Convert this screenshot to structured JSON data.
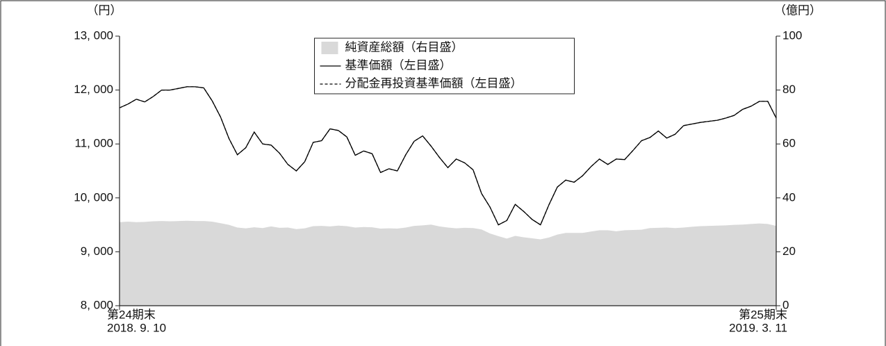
{
  "chart_data": {
    "type": "line",
    "y_unit_label": "（円）",
    "y2_unit_label": "（億円）",
    "categories": [
      "2018. 9. 10",
      null,
      null,
      null,
      null,
      null,
      null,
      null,
      null,
      null,
      null,
      null,
      null,
      null,
      null,
      null,
      null,
      null,
      null,
      null,
      null,
      null,
      null,
      null,
      null,
      null,
      null,
      null,
      null,
      null,
      null,
      null,
      null,
      null,
      null,
      null,
      null,
      null,
      null,
      null,
      null,
      null,
      null,
      null,
      null,
      null,
      null,
      null,
      null,
      null,
      null,
      null,
      null,
      null,
      null,
      null,
      null,
      null,
      null,
      null,
      null,
      null,
      null,
      null,
      null,
      null,
      null,
      null,
      null,
      null,
      null,
      null,
      null,
      null,
      null,
      null,
      null,
      null,
      "2019. 3. 11"
    ],
    "category_periods": [
      "第24期末",
      null,
      null,
      null,
      null,
      null,
      null,
      null,
      null,
      null,
      null,
      null,
      null,
      null,
      null,
      null,
      null,
      null,
      null,
      null,
      null,
      null,
      null,
      null,
      null,
      null,
      null,
      null,
      null,
      null,
      null,
      null,
      null,
      null,
      null,
      null,
      null,
      null,
      null,
      null,
      null,
      null,
      null,
      null,
      null,
      null,
      null,
      null,
      null,
      null,
      null,
      null,
      null,
      null,
      null,
      null,
      null,
      null,
      null,
      null,
      null,
      null,
      null,
      null,
      null,
      null,
      null,
      null,
      null,
      null,
      null,
      null,
      null,
      null,
      null,
      null,
      null,
      null,
      "第25期末"
    ],
    "series": [
      {
        "name": "純資産総額（右目盛）",
        "type": "area",
        "axis": "y2",
        "color": "#d9d9d9",
        "values": [
          31,
          31.2,
          31,
          31.1,
          31.3,
          31.4,
          31.3,
          31.4,
          31.5,
          31.4,
          31.4,
          31.2,
          30.6,
          30,
          29,
          28.7,
          29.1,
          28.8,
          29.4,
          28.9,
          29,
          28.4,
          28.7,
          29.5,
          29.6,
          29.4,
          29.7,
          29.5,
          29,
          29.2,
          29.1,
          28.6,
          28.7,
          28.6,
          29,
          29.6,
          29.8,
          30.1,
          29.4,
          29,
          28.7,
          28.9,
          28.8,
          28.3,
          26.8,
          25.8,
          24.9,
          25.9,
          25.4,
          25,
          24.6,
          25.3,
          26.4,
          27,
          27,
          27,
          27.5,
          28,
          28,
          27.6,
          28,
          28.1,
          28.2,
          28.8,
          28.9,
          29,
          28.8,
          29,
          29.3,
          29.5,
          29.6,
          29.7,
          29.8,
          30,
          30.1,
          30.3,
          30.5,
          30.3,
          29.6
        ]
      },
      {
        "name": "基準価額（左目盛）",
        "type": "line",
        "color": "#000000",
        "values": [
          11670,
          11740,
          11830,
          11780,
          11880,
          12000,
          12000,
          12030,
          12060,
          12060,
          12040,
          11800,
          11500,
          11100,
          10800,
          10930,
          11220,
          11000,
          10980,
          10830,
          10620,
          10500,
          10670,
          11030,
          11060,
          11280,
          11250,
          11130,
          10790,
          10870,
          10820,
          10470,
          10540,
          10500,
          10800,
          11050,
          11150,
          10960,
          10750,
          10560,
          10720,
          10650,
          10520,
          10080,
          9830,
          9500,
          9580,
          9880,
          9750,
          9600,
          9500,
          9870,
          10200,
          10330,
          10290,
          10410,
          10580,
          10720,
          10620,
          10720,
          10710,
          10880,
          11060,
          11120,
          11240,
          11110,
          11180,
          11340,
          11370,
          11400,
          11420,
          11440,
          11480,
          11530,
          11640,
          11700,
          11790,
          11790,
          11480
        ]
      },
      {
        "name": "分配金再投資基準価額（左目盛）",
        "type": "line",
        "dashed": true,
        "color": "#000000",
        "values": [
          11670,
          11740,
          11830,
          11780,
          11880,
          12000,
          12000,
          12030,
          12060,
          12060,
          12040,
          11800,
          11500,
          11100,
          10800,
          10930,
          11220,
          11000,
          10980,
          10830,
          10620,
          10500,
          10670,
          11030,
          11060,
          11280,
          11250,
          11130,
          10790,
          10870,
          10820,
          10470,
          10540,
          10500,
          10800,
          11050,
          11150,
          10960,
          10750,
          10560,
          10720,
          10650,
          10520,
          10080,
          9830,
          9500,
          9580,
          9880,
          9750,
          9600,
          9500,
          9870,
          10200,
          10330,
          10290,
          10410,
          10580,
          10720,
          10620,
          10720,
          10710,
          10880,
          11060,
          11120,
          11240,
          11110,
          11180,
          11340,
          11370,
          11400,
          11420,
          11440,
          11480,
          11530,
          11640,
          11700,
          11790,
          11790,
          11480
        ]
      }
    ],
    "ylim": [
      8000,
      13000
    ],
    "yticks": [
      {
        "value": 8000,
        "label": "8, 000"
      },
      {
        "value": 9000,
        "label": "9, 000"
      },
      {
        "value": 10000,
        "label": "10, 000"
      },
      {
        "value": 11000,
        "label": "11, 000"
      },
      {
        "value": 12000,
        "label": "12, 000"
      },
      {
        "value": 13000,
        "label": "13, 000"
      }
    ],
    "y2lim": [
      0,
      100
    ],
    "y2ticks": [
      0,
      20,
      40,
      60,
      80,
      100
    ],
    "legend": "upper center"
  }
}
